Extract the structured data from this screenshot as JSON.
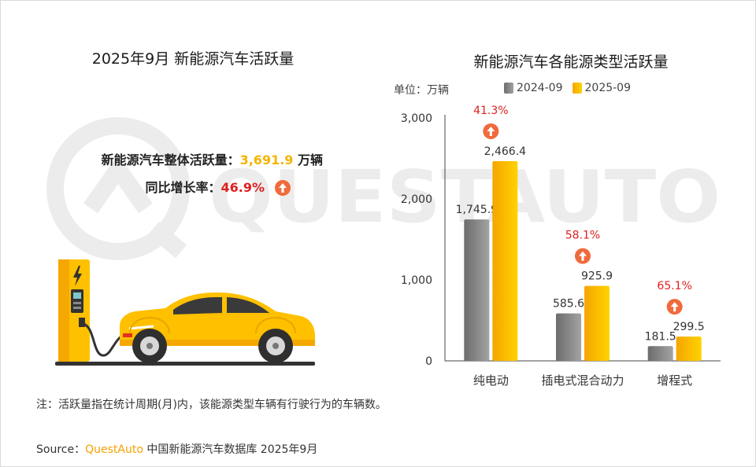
{
  "left": {
    "title": "2025年9月 新能源汽车活跃量",
    "total_label": "新能源汽车整体活跃量：",
    "total_value": "3,691.9",
    "total_unit": " 万辆",
    "yoy_label": "同比增长率：",
    "yoy_value": "46.9%"
  },
  "right": {
    "title": "新能源汽车各能源类型活跃量",
    "unit_label": "单位：万辆"
  },
  "watermark_text": "QUESTAUTO",
  "note": "注：活跃量指在统计周期(月)内，该能源类型车辆有行驶行为的车辆数。",
  "source": {
    "prefix": "Source：",
    "brand": "QuestAuto",
    "suffix": " 中国新能源汽车数据库 2025年9月"
  },
  "colors": {
    "series_2024": "#8c8c8c",
    "series_2025": "#ffc000",
    "growth_text": "#e02020",
    "up_badge": "#f06a3c"
  },
  "chart_data": {
    "type": "bar",
    "categories": [
      "纯电动",
      "插电式混合动力",
      "增程式"
    ],
    "series": [
      {
        "name": "2024-09",
        "values": [
          1745.9,
          585.6,
          181.5
        ],
        "labels": [
          "1,745.9",
          "585.6",
          "181.5"
        ]
      },
      {
        "name": "2025-09",
        "values": [
          2466.4,
          925.9,
          299.5
        ],
        "labels": [
          "2,466.4",
          "925.9",
          "299.5"
        ]
      }
    ],
    "growth": [
      "41.3%",
      "58.1%",
      "65.1%"
    ],
    "ylim": [
      0,
      3000
    ],
    "yticks": [
      0,
      1000,
      2000,
      3000
    ],
    "ytick_labels": [
      "0",
      "1,000",
      "2,000",
      "3,000"
    ],
    "grid": false,
    "legend": "top"
  }
}
